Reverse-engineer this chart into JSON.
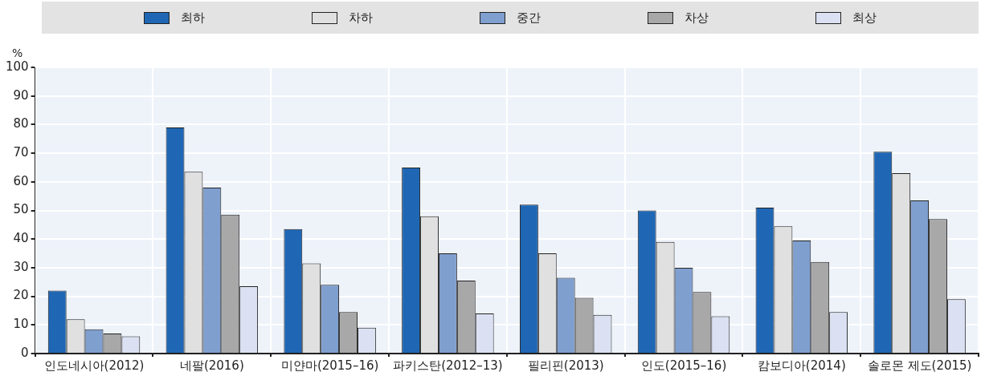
{
  "chart_data": {
    "type": "bar",
    "ylabel": "%",
    "categories": [
      "인도네시아(2012)",
      "네팔(2016)",
      "미얀마(2015–16)",
      "파키스탄(2012–13)",
      "필리핀(2013)",
      "인도(2015–16)",
      "캄보디아(2014)",
      "솔로몬 제도(2015)"
    ],
    "series": [
      {
        "name": "최하",
        "color": "#1f67b5",
        "values": [
          22,
          79,
          43.5,
          65,
          52,
          50,
          51,
          70.5
        ]
      },
      {
        "name": "차하",
        "color": "#e0e0e0",
        "values": [
          12,
          63.5,
          31.5,
          48,
          35,
          39,
          44.5,
          63
        ]
      },
      {
        "name": "중간",
        "color": "#7f9fcf",
        "values": [
          8.5,
          58,
          24,
          35,
          26.5,
          30,
          39.5,
          53.5
        ]
      },
      {
        "name": "차상",
        "color": "#a8a8a8",
        "values": [
          7,
          48.5,
          14.5,
          25.5,
          19.5,
          21.5,
          32,
          47
        ]
      },
      {
        "name": "최상",
        "color": "#dbe1f2",
        "values": [
          6,
          23.5,
          9,
          14,
          13.5,
          13,
          14.5,
          19
        ]
      }
    ],
    "ylim": [
      0,
      100
    ],
    "yticks": [
      0,
      10,
      20,
      30,
      40,
      50,
      60,
      70,
      80,
      90,
      100
    ],
    "grid": true,
    "legend": "top"
  }
}
